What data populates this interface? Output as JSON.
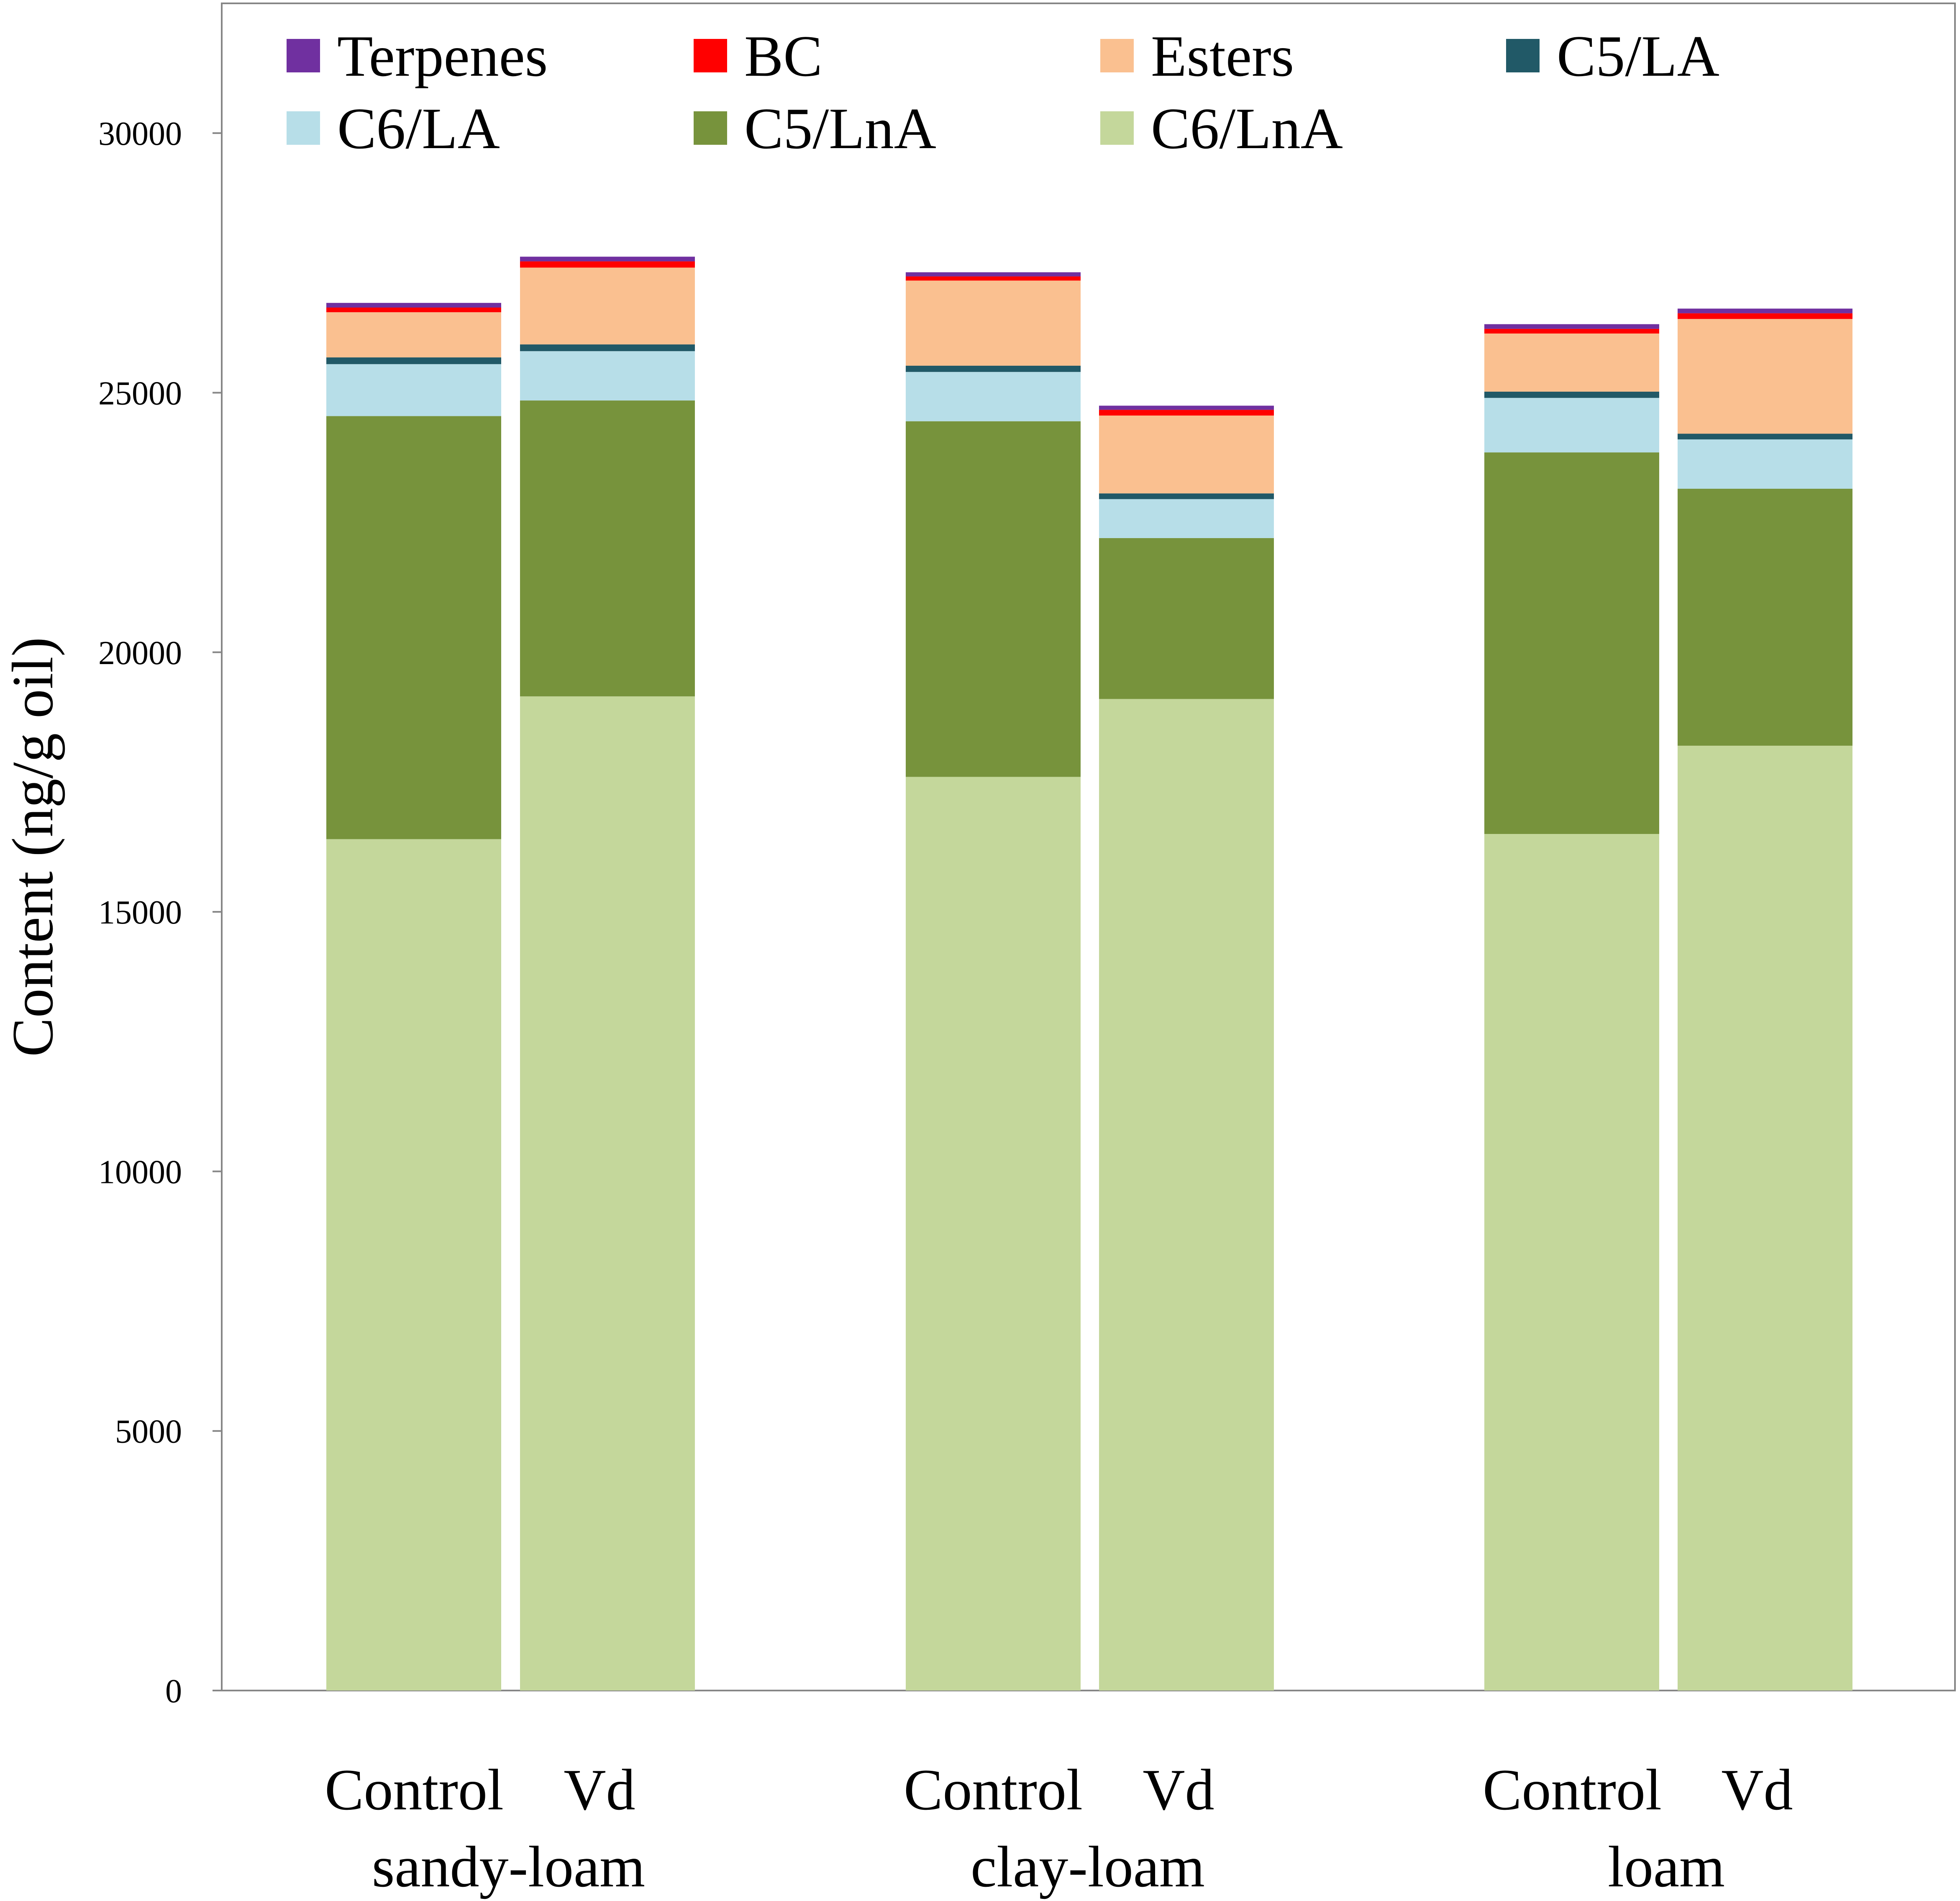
{
  "chart_data": {
    "type": "bar",
    "stacked": true,
    "title": "",
    "xlabel": "",
    "ylabel": "Content (ng/g oil)",
    "ylim": [
      0,
      32500
    ],
    "yticks": [
      0,
      5000,
      10000,
      15000,
      20000,
      25000,
      30000
    ],
    "grid": false,
    "legend_position": "top",
    "categories": [
      "Control",
      "Vd",
      "Control",
      "Vd",
      "Control",
      "Vd"
    ],
    "groups": [
      {
        "label": "sandy-loam",
        "bars": [
          "Control",
          "Vd"
        ]
      },
      {
        "label": "clay-loam",
        "bars": [
          "Control",
          "Vd"
        ]
      },
      {
        "label": "loam",
        "bars": [
          "Control",
          "Vd"
        ]
      }
    ],
    "series": [
      {
        "name": "C6/LnA",
        "color": "#c4d79b",
        "values": [
          16400,
          19150,
          17600,
          19100,
          16500,
          18200
        ]
      },
      {
        "name": "C5/LnA",
        "color": "#77933c",
        "values": [
          8150,
          5700,
          6850,
          3100,
          7350,
          4950
        ]
      },
      {
        "name": "C6/LA",
        "color": "#b7dee8",
        "values": [
          1000,
          950,
          950,
          750,
          1050,
          950
        ]
      },
      {
        "name": "C5/LA",
        "color": "#215967",
        "values": [
          130,
          130,
          120,
          110,
          120,
          110
        ]
      },
      {
        "name": "Esters",
        "color": "#fac090",
        "values": [
          870,
          1480,
          1640,
          1500,
          1120,
          2210
        ]
      },
      {
        "name": "BC",
        "color": "#ff0000",
        "values": [
          90,
          120,
          80,
          110,
          90,
          110
        ]
      },
      {
        "name": "Terpenes",
        "color": "#7030a0",
        "values": [
          90,
          90,
          80,
          80,
          90,
          90
        ]
      }
    ],
    "legend_order": [
      "Terpenes",
      "BC",
      "Esters",
      "C5/LA",
      "C6/LA",
      "C5/LnA",
      "C6/LnA"
    ]
  }
}
